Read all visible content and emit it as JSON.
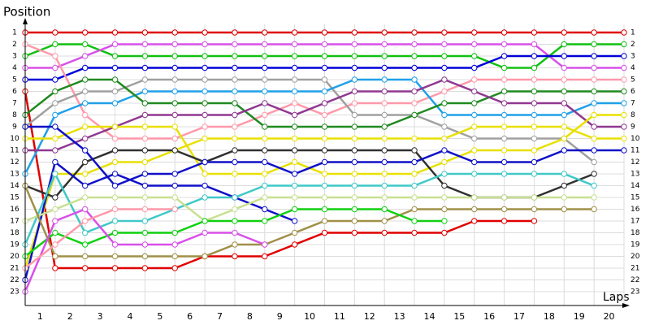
{
  "chart_data": {
    "type": "lap",
    "title": "Position",
    "x_label": "Laps",
    "x": [
      0,
      1,
      2,
      3,
      4,
      5,
      6,
      7,
      8,
      9,
      10,
      11,
      12,
      13,
      14,
      15,
      16,
      17,
      18,
      19,
      20
    ],
    "xlim": [
      0,
      20
    ],
    "xticks": [
      {
        "value": 0.5,
        "label": "1"
      },
      {
        "value": 1.5,
        "label": "2"
      },
      {
        "value": 2.5,
        "label": "3"
      },
      {
        "value": 3.5,
        "label": "4"
      },
      {
        "value": 4.5,
        "label": "5"
      },
      {
        "value": 5.5,
        "label": "6"
      },
      {
        "value": 6.5,
        "label": "7"
      },
      {
        "value": 7.5,
        "label": "8"
      },
      {
        "value": 8.5,
        "label": "9"
      },
      {
        "value": 9.5,
        "label": "10"
      },
      {
        "value": 10.5,
        "label": "11"
      },
      {
        "value": 11.5,
        "label": "12"
      },
      {
        "value": 12.5,
        "label": "13"
      },
      {
        "value": 13.5,
        "label": "14"
      },
      {
        "value": 14.5,
        "label": "15"
      },
      {
        "value": 15.5,
        "label": "16"
      },
      {
        "value": 16.5,
        "label": "17"
      },
      {
        "value": 17.5,
        "label": "18"
      },
      {
        "value": 18.5,
        "label": "19"
      },
      {
        "value": 19.5,
        "label": "20"
      }
    ],
    "ylim": [
      24,
      0
    ],
    "yticks": [
      1,
      2,
      3,
      4,
      5,
      6,
      7,
      8,
      9,
      10,
      11,
      12,
      13,
      14,
      15,
      16,
      17,
      18,
      19,
      20,
      21,
      22,
      23
    ],
    "grid": true,
    "series": [
      {
        "color": "#e00000",
        "values": [
          1,
          1,
          1,
          1,
          1,
          1,
          1,
          1,
          1,
          1,
          1,
          1,
          1,
          1,
          1,
          1,
          1,
          1,
          1,
          1,
          1
        ]
      },
      {
        "color": "#e00000",
        "values": [
          6,
          21,
          21,
          21,
          21,
          21,
          20,
          20,
          20,
          19,
          18,
          18,
          18,
          18,
          18,
          17,
          17,
          17,
          null,
          null,
          null
        ]
      },
      {
        "color": "#10c010",
        "values": [
          3,
          2,
          2,
          3,
          3,
          3,
          3,
          3,
          3,
          3,
          3,
          3,
          3,
          3,
          3,
          3,
          4,
          4,
          2,
          2,
          2
        ]
      },
      {
        "color": "#d850e8",
        "values": [
          4,
          4,
          3,
          2,
          2,
          2,
          2,
          2,
          2,
          2,
          2,
          2,
          2,
          2,
          2,
          2,
          2,
          2,
          4,
          4,
          4
        ]
      },
      {
        "color": "#0000d8",
        "values": [
          5,
          5,
          4,
          4,
          4,
          4,
          4,
          4,
          4,
          4,
          4,
          4,
          4,
          4,
          4,
          4,
          3,
          3,
          3,
          3,
          3
        ]
      },
      {
        "color": "#ff99aa",
        "values": [
          2,
          3,
          8,
          10,
          10,
          10,
          9,
          9,
          8,
          7,
          8,
          7,
          7,
          7,
          6,
          5,
          5,
          5,
          5,
          5,
          5
        ]
      },
      {
        "color": "#a0a0a0",
        "values": [
          9,
          7,
          6,
          6,
          5,
          5,
          5,
          5,
          5,
          5,
          5,
          8,
          8,
          8,
          9,
          10,
          10,
          10,
          10,
          12,
          null
        ]
      },
      {
        "color": "#20a0e8",
        "values": [
          13,
          8,
          7,
          7,
          6,
          6,
          6,
          6,
          6,
          6,
          6,
          5,
          5,
          5,
          8,
          8,
          8,
          8,
          8,
          7,
          7
        ]
      },
      {
        "color": "#208a20",
        "values": [
          8,
          6,
          5,
          5,
          7,
          7,
          7,
          7,
          9,
          9,
          9,
          9,
          9,
          8,
          7,
          7,
          6,
          6,
          6,
          6,
          6
        ]
      },
      {
        "color": "#903890",
        "values": [
          11,
          11,
          10,
          9,
          8,
          8,
          8,
          8,
          7,
          8,
          7,
          6,
          6,
          6,
          5,
          6,
          7,
          7,
          7,
          9,
          9
        ]
      },
      {
        "color": "#e8e000",
        "values": [
          10,
          10,
          9,
          9,
          9,
          9,
          13,
          13,
          13,
          12,
          13,
          13,
          13,
          13,
          12,
          11,
          11,
          11,
          10,
          8,
          8
        ]
      },
      {
        "color": "#e8e000",
        "values": [
          21,
          13,
          13,
          12,
          12,
          11,
          10,
          10,
          10,
          10,
          10,
          10,
          10,
          10,
          10,
          9,
          9,
          9,
          9,
          10,
          10
        ]
      },
      {
        "color": "#303030",
        "values": [
          14,
          15,
          12,
          11,
          11,
          11,
          12,
          11,
          11,
          11,
          11,
          11,
          11,
          11,
          14,
          15,
          15,
          15,
          14,
          13,
          null
        ]
      },
      {
        "color": "#1010c8",
        "values": [
          9,
          9,
          11,
          14,
          13,
          13,
          12,
          12,
          12,
          13,
          12,
          12,
          12,
          12,
          11,
          12,
          12,
          12,
          11,
          11,
          11
        ]
      },
      {
        "color": "#1010c8",
        "values": [
          22,
          12,
          14,
          13,
          14,
          14,
          14,
          15,
          16,
          17,
          null,
          null,
          null,
          null,
          null,
          null,
          null,
          null,
          null,
          null,
          null
        ]
      },
      {
        "color": "#40c8c8",
        "values": [
          19,
          13,
          18,
          17,
          17,
          16,
          15,
          15,
          14,
          14,
          14,
          14,
          14,
          14,
          13,
          13,
          13,
          13,
          13,
          14,
          null
        ]
      },
      {
        "color": "#c8e090",
        "values": [
          17,
          16,
          15,
          15,
          15,
          15,
          17,
          16,
          15,
          15,
          15,
          15,
          15,
          15,
          15,
          15,
          15,
          15,
          15,
          15,
          null
        ]
      },
      {
        "color": "#a09048",
        "values": [
          14,
          20,
          20,
          20,
          20,
          20,
          20,
          19,
          19,
          18,
          17,
          17,
          17,
          16,
          16,
          16,
          16,
          16,
          16,
          16,
          null
        ]
      },
      {
        "color": "#10d010",
        "values": [
          20,
          18,
          19,
          18,
          18,
          18,
          17,
          17,
          17,
          16,
          16,
          16,
          16,
          17,
          17,
          null,
          null,
          null,
          null,
          null,
          null
        ]
      },
      {
        "color": "#d850e8",
        "values": [
          23,
          17,
          16,
          19,
          19,
          19,
          18,
          18,
          19,
          null,
          null,
          null,
          null,
          null,
          null,
          null,
          null,
          null,
          null,
          null,
          null
        ]
      },
      {
        "color": "#ff99aa",
        "values": [
          21,
          19,
          17,
          16,
          16,
          16,
          null,
          null,
          null,
          null,
          null,
          null,
          null,
          null,
          null,
          null,
          null,
          null,
          null,
          null,
          null
        ]
      }
    ]
  }
}
